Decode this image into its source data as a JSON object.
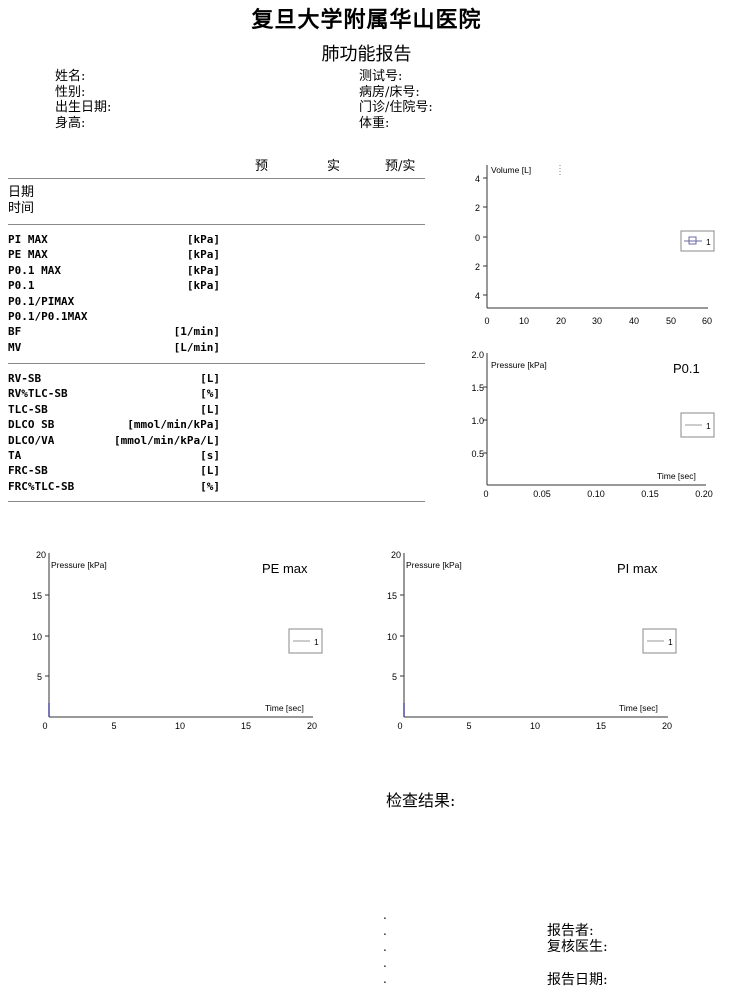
{
  "header": {
    "hospital": "复旦大学附属华山医院",
    "report_title": "肺功能报告"
  },
  "patient_left": [
    "姓名:",
    "性别:",
    "出生日期:",
    "身高:"
  ],
  "patient_right": [
    "测试号:",
    "病房/床号:",
    "门诊/住院号:",
    "体重:"
  ],
  "table_header": {
    "pred": "预",
    "actual": "实",
    "ratio": "预/实"
  },
  "date_labels": [
    "日期",
    "时间"
  ],
  "group1": [
    {
      "name": "PI MAX",
      "unit": "[kPa]"
    },
    {
      "name": "PE MAX",
      "unit": "[kPa]"
    },
    {
      "name": "P0.1 MAX",
      "unit": "[kPa]"
    },
    {
      "name": "P0.1",
      "unit": "[kPa]"
    },
    {
      "name": "P0.1/PIMAX",
      "unit": ""
    },
    {
      "name": "P0.1/P0.1MAX",
      "unit": ""
    },
    {
      "name": "BF",
      "unit": "[1/min]"
    },
    {
      "name": "MV",
      "unit": "[L/min]"
    }
  ],
  "group2": [
    {
      "name": "RV-SB",
      "unit": "[L]"
    },
    {
      "name": "RV%TLC-SB",
      "unit": "[%]"
    },
    {
      "name": "TLC-SB",
      "unit": "[L]"
    },
    {
      "name": "DLCO SB",
      "unit": "[mmol/min/kPa]"
    },
    {
      "name": "DLCO/VA",
      "unit": "[mmol/min/kPa/L]"
    },
    {
      "name": "TA",
      "unit": "[s]"
    },
    {
      "name": "FRC-SB",
      "unit": "[L]"
    },
    {
      "name": "FRC%TLC-SB",
      "unit": "[%]"
    }
  ],
  "chart_data": [
    {
      "type": "line",
      "title": "",
      "ylabel": "Volume [L]",
      "xlabel": "",
      "x_ticks": [
        "0",
        "10",
        "20",
        "30",
        "40",
        "50",
        "60"
      ],
      "y_ticks": [
        "4",
        "2",
        "0",
        "2",
        "4"
      ],
      "xlim": [
        0,
        60
      ],
      "legend": [
        "1"
      ],
      "series": []
    },
    {
      "type": "line",
      "title": "P0.1",
      "ylabel": "Pressure [kPa]",
      "xlabel": "Time [sec]",
      "x_ticks": [
        "0",
        "0.05",
        "0.10",
        "0.15",
        "0.20"
      ],
      "y_ticks": [
        "2.0",
        "1.5",
        "1.0",
        "0.5"
      ],
      "xlim": [
        0,
        0.2
      ],
      "ylim": [
        0,
        2.0
      ],
      "legend": [
        "1"
      ],
      "series": []
    },
    {
      "type": "line",
      "title": "PE max",
      "ylabel": "Pressure [kPa]",
      "xlabel": "Time [sec]",
      "x_ticks": [
        "0",
        "5",
        "10",
        "15",
        "20"
      ],
      "y_ticks": [
        "20",
        "15",
        "10",
        "5"
      ],
      "xlim": [
        0,
        20
      ],
      "ylim": [
        0,
        20
      ],
      "legend": [
        "1"
      ],
      "series": []
    },
    {
      "type": "line",
      "title": "PI max",
      "ylabel": "Pressure [kPa]",
      "xlabel": "Time [sec]",
      "x_ticks": [
        "0",
        "5",
        "10",
        "15",
        "20"
      ],
      "y_ticks": [
        "20",
        "15",
        "10",
        "5"
      ],
      "xlim": [
        0,
        20
      ],
      "ylim": [
        0,
        20
      ],
      "legend": [
        "1"
      ],
      "series": []
    }
  ],
  "results": {
    "label": "检查结果:",
    "dots": [
      ".",
      ".",
      ".",
      ".",
      "."
    ],
    "reporter": "报告者:",
    "reviewer": "复核医生:",
    "report_date": "报告日期:"
  }
}
